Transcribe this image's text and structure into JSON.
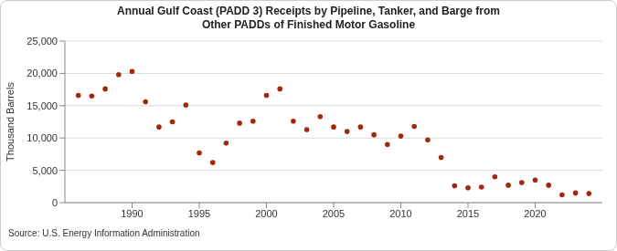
{
  "chart_data": {
    "type": "scatter",
    "title": "Annual Gulf Coast (PADD 3) Receipts by Pipeline, Tanker, and Barge from Other PADDs of Finished Motor Gasoline",
    "y_label": "Thousand Barrels",
    "source": "Source: U.S. Energy Information Administration",
    "x": [
      1986,
      1987,
      1988,
      1989,
      1990,
      1991,
      1992,
      1993,
      1994,
      1995,
      1996,
      1997,
      1998,
      1999,
      2000,
      2001,
      2002,
      2003,
      2004,
      2005,
      2006,
      2007,
      2008,
      2009,
      2010,
      2011,
      2012,
      2013,
      2014,
      2015,
      2016,
      2017,
      2018,
      2019,
      2020,
      2021,
      2022,
      2023,
      2024
    ],
    "values": [
      16600,
      16500,
      17600,
      19800,
      20300,
      15600,
      11700,
      12500,
      15100,
      7700,
      6200,
      9200,
      12300,
      12600,
      16600,
      17600,
      12600,
      11300,
      13300,
      11700,
      11000,
      11700,
      10500,
      9000,
      10300,
      11800,
      9700,
      7000,
      2600,
      2300,
      2400,
      4000,
      2700,
      3100,
      3500,
      2700,
      1200,
      1500,
      1400
    ],
    "color": "#a0280e",
    "marker": "circle",
    "xlim": [
      1985,
      2025
    ],
    "xticks": [
      1990,
      1995,
      2000,
      2005,
      2010,
      2015,
      2020
    ],
    "ylim": [
      0,
      25000
    ],
    "yticks": [
      0,
      {
        "value": 5000,
        "label": "5,000"
      },
      {
        "value": 10000,
        "label": "10,000"
      },
      {
        "value": 15000,
        "label": "15,000"
      },
      {
        "value": 20000,
        "label": "20,000"
      },
      {
        "value": 25000,
        "label": "25,000"
      }
    ],
    "grid": true
  }
}
